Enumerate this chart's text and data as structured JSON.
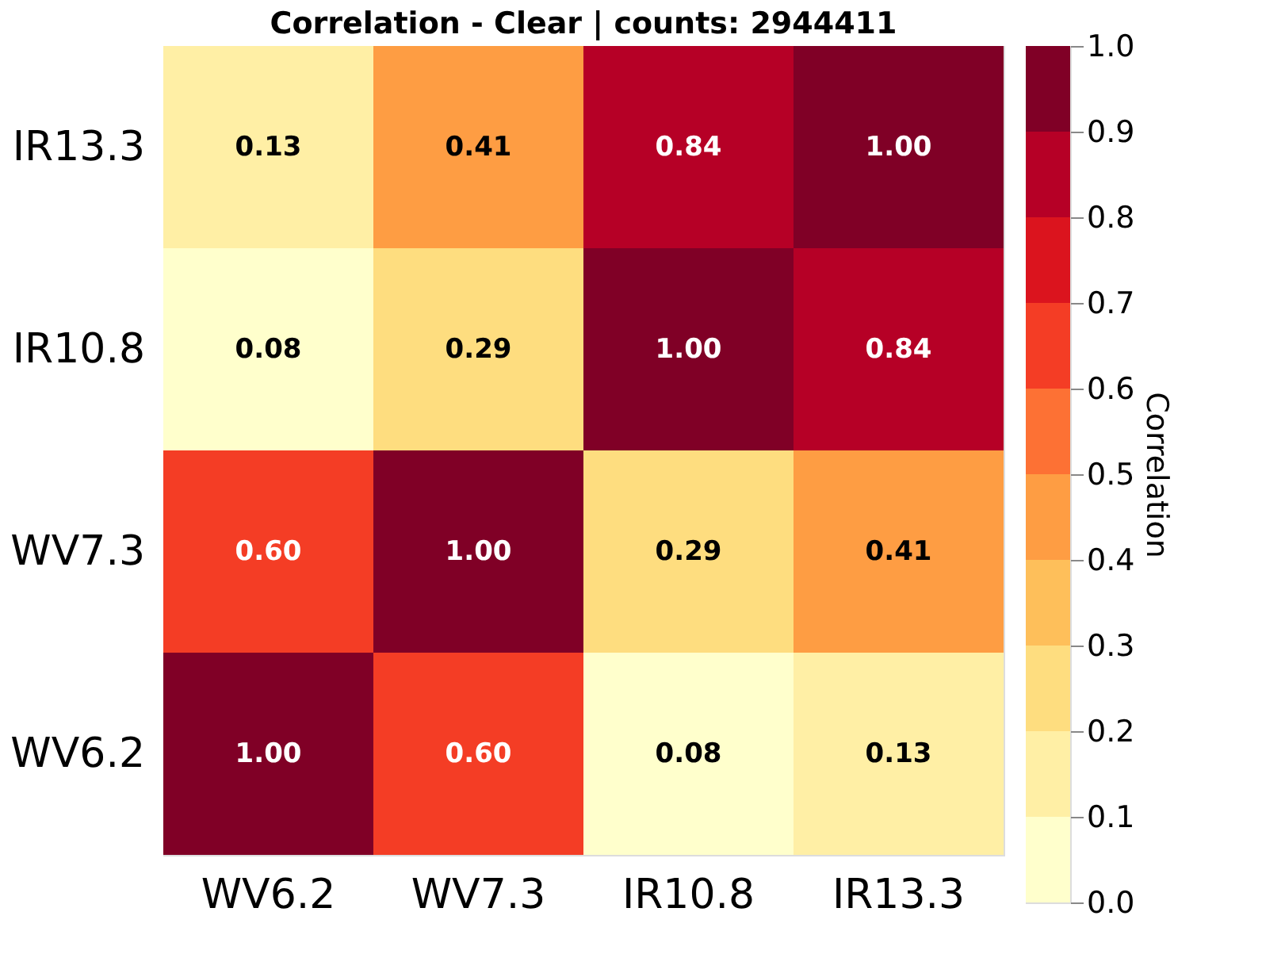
{
  "chart_data": {
    "type": "heatmap",
    "title": "Correlation - Clear | counts: 2944411",
    "clabel": "Correlation",
    "categories": [
      "WV6.2",
      "WV7.3",
      "IR10.8",
      "IR13.3"
    ],
    "y_categories": [
      "IR13.3",
      "IR10.8",
      "WV7.3",
      "WV6.2"
    ],
    "cells": [
      [
        0.13,
        0.41,
        0.84,
        1.0
      ],
      [
        0.08,
        0.29,
        1.0,
        0.84
      ],
      [
        0.6,
        1.0,
        0.29,
        0.41
      ],
      [
        1.0,
        0.6,
        0.08,
        0.13
      ]
    ],
    "cell_labels": [
      [
        "0.13",
        "0.41",
        "0.84",
        "1.00"
      ],
      [
        "0.08",
        "0.29",
        "1.00",
        "0.84"
      ],
      [
        "0.60",
        "1.00",
        "0.29",
        "0.41"
      ],
      [
        "1.00",
        "0.60",
        "0.08",
        "0.13"
      ]
    ],
    "clim": [
      0.0,
      1.0
    ],
    "cticks": [
      {
        "value": 0.0,
        "label": "0.0"
      },
      0.1,
      0.2,
      0.3,
      0.4,
      0.5,
      0.6,
      0.7,
      0.8,
      0.9,
      {
        "value": 1.0,
        "label": "1.0"
      }
    ],
    "data_labels": true
  }
}
